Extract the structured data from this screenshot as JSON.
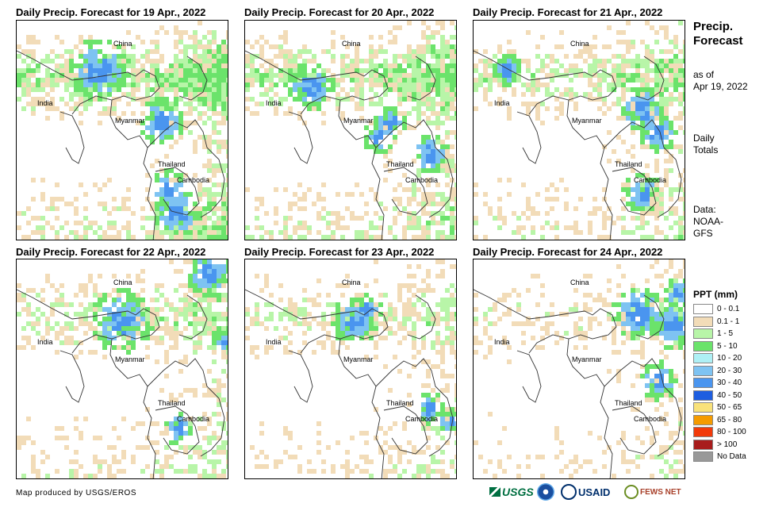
{
  "panels": [
    {
      "title": "Daily Precip. Forecast for 19 Apr., 2022"
    },
    {
      "title": "Daily Precip. Forecast for 20 Apr., 2022"
    },
    {
      "title": "Daily Precip. Forecast for 21 Apr., 2022"
    },
    {
      "title": "Daily Precip. Forecast for 22 Apr., 2022"
    },
    {
      "title": "Daily Precip. Forecast for 23 Apr., 2022"
    },
    {
      "title": "Daily Precip. Forecast for 24 Apr., 2022"
    }
  ],
  "map_labels": {
    "china": "China",
    "india": "India",
    "myanmar": "Myanmar",
    "thailand": "Thailand",
    "cambodia": "Cambodia"
  },
  "side": {
    "title_line1": "Precip.",
    "title_line2": "Forecast",
    "asof_line1": "as of",
    "asof_line2": "Apr 19, 2022",
    "daily_line1": "Daily",
    "daily_line2": "Totals",
    "data_line1": "Data:",
    "data_line2": "NOAA-",
    "data_line3": "GFS"
  },
  "legend": {
    "title": "PPT (mm)",
    "items": [
      {
        "label": "0 - 0.1",
        "color": "#ffffff"
      },
      {
        "label": "0.1 - 1",
        "color": "#f2dcb8"
      },
      {
        "label": "1 - 5",
        "color": "#b8f5a8"
      },
      {
        "label": "5 - 10",
        "color": "#6be36b"
      },
      {
        "label": "10 - 20",
        "color": "#aef0f5"
      },
      {
        "label": "20 - 30",
        "color": "#7ec3f2"
      },
      {
        "label": "30 - 40",
        "color": "#4a95ef"
      },
      {
        "label": "40 - 50",
        "color": "#1e5ee0"
      },
      {
        "label": "50 - 65",
        "color": "#f9e27a"
      },
      {
        "label": "65 - 80",
        "color": "#f59b00"
      },
      {
        "label": "80 - 100",
        "color": "#f23a0a"
      },
      {
        "label": "> 100",
        "color": "#a81c1c"
      },
      {
        "label": "No Data",
        "color": "#999999"
      }
    ]
  },
  "credit": "Map produced by USGS/EROS",
  "logos": {
    "usgs": "USGS",
    "usaid": "USAID",
    "fewsnet": "FEWS NET"
  }
}
